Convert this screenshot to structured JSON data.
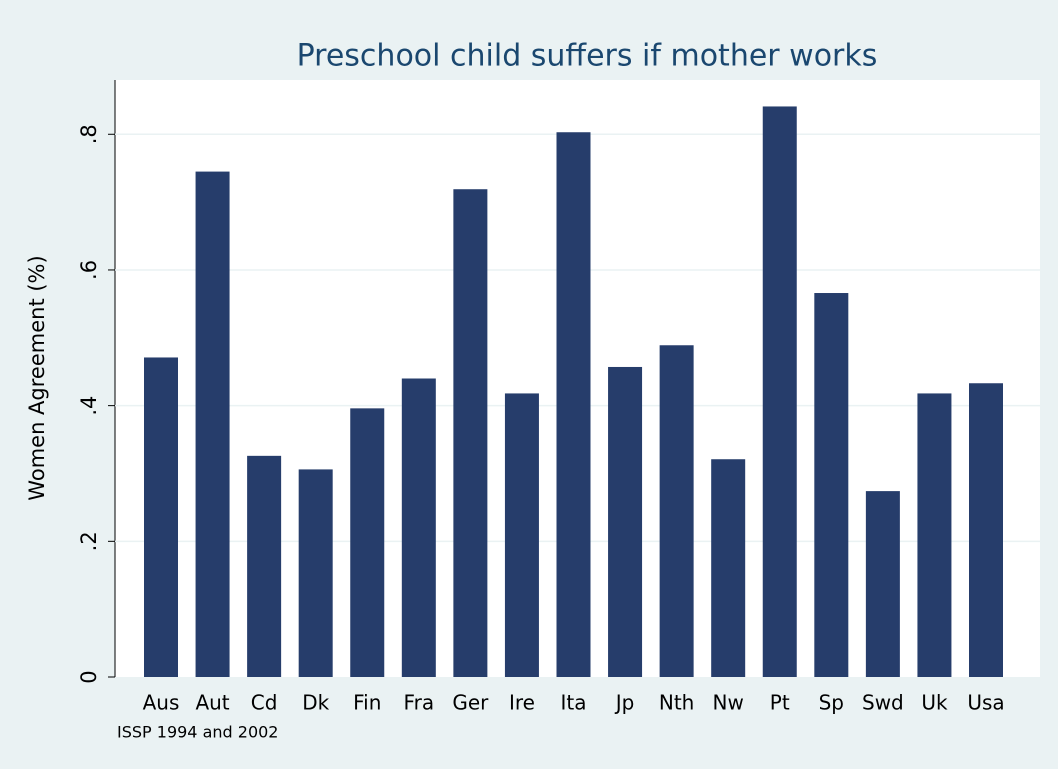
{
  "chart_data": {
    "type": "bar",
    "title": "Preschool child suffers if mother works",
    "y_label": "Women Agreement (%)",
    "note": "ISSP 1994 and 2002",
    "categories": [
      "Aus",
      "Aut",
      "Cd",
      "Dk",
      "Fin",
      "Fra",
      "Ger",
      "Ire",
      "Ita",
      "Jp",
      "Nth",
      "Nw",
      "Pt",
      "Sp",
      "Swd",
      "Uk",
      "Usa"
    ],
    "values": [
      0.471,
      0.745,
      0.326,
      0.306,
      0.396,
      0.44,
      0.719,
      0.418,
      0.803,
      0.457,
      0.489,
      0.321,
      0.841,
      0.566,
      0.274,
      0.418,
      0.433
    ],
    "color": "#263d6b",
    "ylim": [
      0,
      0.88
    ],
    "yticks": [
      0,
      {
        "value": 0.2,
        "label": ".2"
      },
      {
        "value": 0.4,
        "label": ".4"
      },
      {
        "value": 0.6,
        "label": ".6"
      },
      {
        "value": 0.8,
        "label": ".8"
      }
    ],
    "grid": true
  }
}
